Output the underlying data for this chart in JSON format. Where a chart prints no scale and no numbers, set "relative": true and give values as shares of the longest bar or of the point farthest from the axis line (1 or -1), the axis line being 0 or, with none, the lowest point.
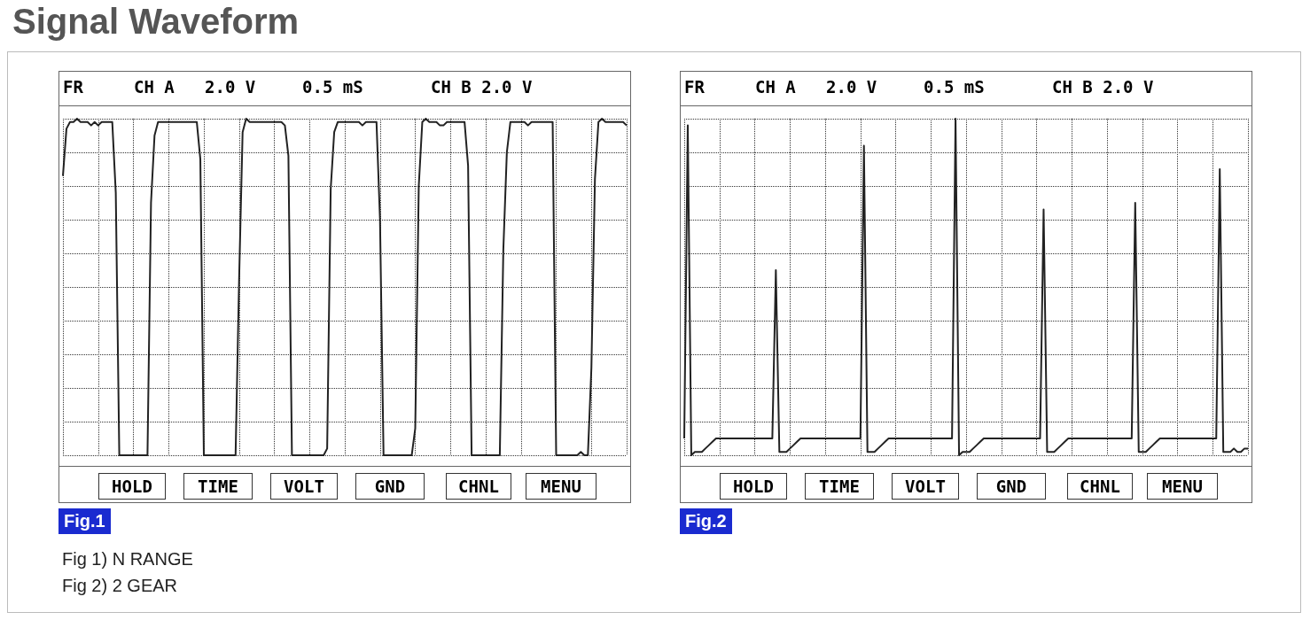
{
  "chart_data": [
    {
      "type": "line",
      "title": "Signal Waveform",
      "relative": true,
      "grid": true,
      "marker": "none",
      "line_style": "solid",
      "annotations": [
        "FR",
        "CH A",
        "2.0 V",
        "0.5 mS",
        "CH B 2.0 V",
        "HOLD",
        "TIME",
        "VOLT",
        "GND",
        "CHNL",
        "MENU",
        "Fig.1",
        "Fig 1) N RANGE",
        "Fig 2) 2 GEAR"
      ],
      "categories": [
        null,
        null,
        null,
        null,
        null,
        null,
        null,
        null,
        null,
        null,
        null,
        null,
        null,
        null,
        null,
        null,
        null,
        null,
        null,
        null,
        null,
        null,
        null,
        null,
        null,
        null,
        null,
        null,
        null,
        null,
        null,
        null,
        null,
        null,
        null,
        null,
        null,
        null,
        null,
        null,
        null,
        null,
        null,
        null,
        null,
        null,
        null,
        null,
        null,
        null,
        null,
        null,
        null,
        null,
        null,
        null,
        null,
        null,
        null,
        null,
        null,
        null,
        null,
        null,
        null,
        null,
        null,
        null,
        null,
        null,
        null,
        null,
        null,
        null,
        null,
        null,
        null,
        null,
        null,
        null,
        null,
        null,
        null,
        null,
        null,
        null,
        null,
        null,
        null,
        null,
        null,
        null,
        null,
        null,
        null,
        null,
        null,
        null,
        null,
        null,
        null,
        null,
        null,
        null,
        null,
        null,
        null,
        null,
        null,
        null,
        null,
        null,
        null,
        null,
        null,
        null,
        null,
        null,
        null,
        null,
        null,
        null,
        null,
        null,
        null,
        null,
        null,
        null,
        null,
        null,
        null,
        null,
        null,
        null,
        null,
        null,
        null,
        null,
        null,
        null,
        null,
        null,
        null,
        null,
        null,
        null,
        null,
        null,
        null,
        null,
        null,
        null,
        null,
        null,
        null,
        null,
        null,
        null,
        null,
        null,
        null
      ],
      "series": [
        {
          "color": "#222222",
          "values": [
            0.83,
            0.97,
            0.99,
            0.99,
            1,
            0.99,
            0.99,
            0.99,
            0.98,
            0.99,
            0.98,
            0.99,
            0.99,
            0.99,
            0.99,
            0.78,
            0,
            0,
            0,
            0,
            0,
            0,
            0,
            0,
            0,
            0.75,
            0.95,
            0.99,
            0.99,
            0.99,
            0.99,
            0.99,
            0.99,
            0.99,
            0.99,
            0.99,
            0.99,
            0.99,
            0.99,
            0.88,
            0,
            0,
            0,
            0,
            0,
            0,
            0,
            0,
            0,
            0,
            0.52,
            0.96,
            1,
            0.99,
            0.99,
            0.99,
            0.99,
            0.99,
            0.99,
            0.99,
            0.99,
            0.99,
            0.99,
            0.98,
            0.89,
            0,
            0,
            0,
            0,
            0,
            0,
            0,
            0,
            0,
            0,
            0.02,
            0.79,
            0.96,
            0.99,
            0.99,
            0.99,
            0.99,
            0.99,
            0.99,
            0.99,
            0.98,
            0.99,
            0.99,
            0.99,
            0.99,
            0.7,
            0,
            0,
            0,
            0,
            0,
            0,
            0,
            0,
            0,
            0.08,
            0.8,
            0.99,
            1,
            0.99,
            0.99,
            0.99,
            0.98,
            0.98,
            0.99,
            0.99,
            0.99,
            0.99,
            0.99,
            0.99,
            0.86,
            0,
            0,
            0,
            0,
            0,
            0,
            0,
            0,
            0,
            0.61,
            0.9,
            0.99,
            0.99,
            0.99,
            0.99,
            0.99,
            0.98,
            0.99,
            0.99,
            0.99,
            0.99,
            0.99,
            0.99,
            0.99,
            0,
            0,
            0,
            0,
            0,
            0,
            0,
            0.01,
            0,
            0,
            0.26,
            0.82,
            0.99,
            1,
            0.99,
            0.99,
            0.99,
            0.99,
            0.99,
            0.99,
            0.98
          ]
        }
      ]
    },
    {
      "type": "line",
      "relative": true,
      "grid": true,
      "marker": "none",
      "line_style": "solid",
      "annotations": [
        "FR",
        "CH A",
        "2.0 V",
        "0.5 mS",
        "CH B 2.0 V",
        "HOLD",
        "TIME",
        "VOLT",
        "GND",
        "CHNL",
        "MENU",
        "Fig.2"
      ],
      "categories": [
        null,
        null,
        null,
        null,
        null,
        null,
        null,
        null,
        null,
        null,
        null,
        null,
        null,
        null,
        null,
        null,
        null,
        null,
        null,
        null,
        null,
        null,
        null,
        null,
        null,
        null,
        null,
        null,
        null,
        null,
        null,
        null,
        null,
        null,
        null,
        null,
        null,
        null,
        null,
        null,
        null,
        null,
        null,
        null,
        null,
        null,
        null,
        null,
        null,
        null,
        null,
        null,
        null,
        null,
        null,
        null,
        null,
        null,
        null,
        null,
        null,
        null,
        null,
        null,
        null,
        null,
        null,
        null,
        null,
        null,
        null,
        null,
        null,
        null,
        null,
        null,
        null,
        null,
        null,
        null,
        null,
        null,
        null,
        null,
        null,
        null,
        null,
        null,
        null,
        null,
        null,
        null,
        null,
        null,
        null,
        null,
        null,
        null,
        null,
        null,
        null,
        null,
        null,
        null,
        null,
        null,
        null,
        null,
        null,
        null,
        null,
        null,
        null,
        null,
        null,
        null,
        null,
        null,
        null,
        null,
        null,
        null,
        null,
        null,
        null,
        null,
        null,
        null,
        null,
        null,
        null,
        null,
        null,
        null,
        null,
        null,
        null,
        null,
        null,
        null,
        null,
        null,
        null,
        null,
        null,
        null,
        null,
        null,
        null,
        null,
        null,
        null,
        null,
        null,
        null,
        null,
        null,
        null,
        null,
        null,
        null
      ],
      "series": [
        {
          "color": "#222222",
          "values": [
            0.05,
            0.98,
            0,
            0.01,
            0.01,
            0.01,
            0.02,
            0.03,
            0.04,
            0.05,
            0.05,
            0.05,
            0.05,
            0.05,
            0.05,
            0.05,
            0.05,
            0.05,
            0.05,
            0.05,
            0.05,
            0.05,
            0.05,
            0.05,
            0.05,
            0.05,
            0.55,
            0.01,
            0.01,
            0.01,
            0.02,
            0.03,
            0.04,
            0.05,
            0.05,
            0.05,
            0.05,
            0.05,
            0.05,
            0.05,
            0.05,
            0.05,
            0.05,
            0.05,
            0.05,
            0.05,
            0.05,
            0.05,
            0.05,
            0.05,
            0.05,
            0.92,
            0.01,
            0.01,
            0.01,
            0.02,
            0.03,
            0.04,
            0.05,
            0.05,
            0.05,
            0.05,
            0.05,
            0.05,
            0.05,
            0.05,
            0.05,
            0.05,
            0.05,
            0.05,
            0.05,
            0.05,
            0.05,
            0.05,
            0.05,
            0.05,
            0.05,
            1,
            0,
            0.01,
            0.01,
            0.01,
            0.02,
            0.03,
            0.04,
            0.05,
            0.05,
            0.05,
            0.05,
            0.05,
            0.05,
            0.05,
            0.05,
            0.05,
            0.05,
            0.05,
            0.05,
            0.05,
            0.05,
            0.05,
            0.05,
            0.05,
            0.73,
            0.01,
            0.01,
            0.01,
            0.02,
            0.03,
            0.04,
            0.05,
            0.05,
            0.05,
            0.05,
            0.05,
            0.05,
            0.05,
            0.05,
            0.05,
            0.05,
            0.05,
            0.05,
            0.05,
            0.05,
            0.05,
            0.05,
            0.05,
            0.05,
            0.05,
            0.75,
            0.01,
            0.01,
            0.01,
            0.02,
            0.03,
            0.04,
            0.05,
            0.05,
            0.05,
            0.05,
            0.05,
            0.05,
            0.05,
            0.05,
            0.05,
            0.05,
            0.05,
            0.05,
            0.05,
            0.05,
            0.05,
            0.05,
            0.05,
            0.85,
            0.01,
            0.01,
            0.01,
            0.02,
            0.01,
            0.01,
            0.02,
            0.02
          ]
        }
      ]
    }
  ]
}
